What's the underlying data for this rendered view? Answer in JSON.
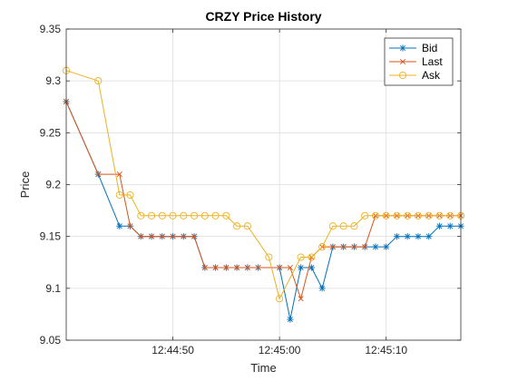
{
  "chart_data": {
    "type": "line",
    "title": "CRZY Price History",
    "xlabel": "Time",
    "ylabel": "Price",
    "x_axis_type": "time",
    "xlim": [
      "12:44:40",
      "12:45:17"
    ],
    "ylim": [
      9.05,
      9.35
    ],
    "xticks": [
      "12:44:50",
      "12:45:00",
      "12:45:10"
    ],
    "yticks": [
      "9.05",
      "9.1",
      "9.15",
      "9.2",
      "9.25",
      "9.3",
      "9.35"
    ],
    "grid": true,
    "legend_position": "top-right",
    "series": [
      {
        "name": "Bid",
        "color": "#0072BD",
        "marker": "asterisk",
        "points": [
          [
            "12:44:40",
            9.28
          ],
          [
            "12:44:43",
            9.21
          ],
          [
            "12:44:45",
            9.16
          ],
          [
            "12:44:46",
            9.16
          ],
          [
            "12:44:47",
            9.15
          ],
          [
            "12:44:48",
            9.15
          ],
          [
            "12:44:49",
            9.15
          ],
          [
            "12:44:50",
            9.15
          ],
          [
            "12:44:51",
            9.15
          ],
          [
            "12:44:52",
            9.15
          ],
          [
            "12:44:53",
            9.12
          ],
          [
            "12:44:54",
            9.12
          ],
          [
            "12:44:55",
            9.12
          ],
          [
            "12:44:56",
            9.12
          ],
          [
            "12:44:57",
            9.12
          ],
          [
            "12:44:58",
            9.12
          ],
          [
            "12:45:00",
            9.12
          ],
          [
            "12:45:01",
            9.07
          ],
          [
            "12:45:02",
            9.12
          ],
          [
            "12:45:03",
            9.12
          ],
          [
            "12:45:04",
            9.1
          ],
          [
            "12:45:05",
            9.14
          ],
          [
            "12:45:06",
            9.14
          ],
          [
            "12:45:07",
            9.14
          ],
          [
            "12:45:08",
            9.14
          ],
          [
            "12:45:09",
            9.14
          ],
          [
            "12:45:10",
            9.14
          ],
          [
            "12:45:11",
            9.15
          ],
          [
            "12:45:12",
            9.15
          ],
          [
            "12:45:13",
            9.15
          ],
          [
            "12:45:14",
            9.15
          ],
          [
            "12:45:15",
            9.16
          ],
          [
            "12:45:16",
            9.16
          ],
          [
            "12:45:17",
            9.16
          ]
        ]
      },
      {
        "name": "Last",
        "color": "#D95319",
        "marker": "x",
        "points": [
          [
            "12:44:40",
            9.28
          ],
          [
            "12:44:43",
            9.21
          ],
          [
            "12:44:45",
            9.21
          ],
          [
            "12:44:46",
            9.16
          ],
          [
            "12:44:47",
            9.15
          ],
          [
            "12:44:48",
            9.15
          ],
          [
            "12:44:49",
            9.15
          ],
          [
            "12:44:50",
            9.15
          ],
          [
            "12:44:51",
            9.15
          ],
          [
            "12:44:52",
            9.15
          ],
          [
            "12:44:53",
            9.12
          ],
          [
            "12:44:54",
            9.12
          ],
          [
            "12:44:55",
            9.12
          ],
          [
            "12:44:56",
            9.12
          ],
          [
            "12:44:57",
            9.12
          ],
          [
            "12:44:58",
            9.12
          ],
          [
            "12:45:00",
            9.12
          ],
          [
            "12:45:01",
            9.12
          ],
          [
            "12:45:02",
            9.09
          ],
          [
            "12:45:03",
            9.13
          ],
          [
            "12:45:04",
            9.14
          ],
          [
            "12:45:05",
            9.14
          ],
          [
            "12:45:06",
            9.14
          ],
          [
            "12:45:07",
            9.14
          ],
          [
            "12:45:08",
            9.14
          ],
          [
            "12:45:09",
            9.17
          ],
          [
            "12:45:10",
            9.17
          ],
          [
            "12:45:11",
            9.17
          ],
          [
            "12:45:12",
            9.17
          ],
          [
            "12:45:13",
            9.17
          ],
          [
            "12:45:14",
            9.17
          ],
          [
            "12:45:15",
            9.17
          ],
          [
            "12:45:16",
            9.17
          ],
          [
            "12:45:17",
            9.17
          ]
        ]
      },
      {
        "name": "Ask",
        "color": "#EDB120",
        "marker": "circle",
        "points": [
          [
            "12:44:40",
            9.31
          ],
          [
            "12:44:43",
            9.3
          ],
          [
            "12:44:45",
            9.19
          ],
          [
            "12:44:46",
            9.19
          ],
          [
            "12:44:47",
            9.17
          ],
          [
            "12:44:48",
            9.17
          ],
          [
            "12:44:49",
            9.17
          ],
          [
            "12:44:50",
            9.17
          ],
          [
            "12:44:51",
            9.17
          ],
          [
            "12:44:52",
            9.17
          ],
          [
            "12:44:53",
            9.17
          ],
          [
            "12:44:54",
            9.17
          ],
          [
            "12:44:55",
            9.17
          ],
          [
            "12:44:56",
            9.16
          ],
          [
            "12:44:57",
            9.16
          ],
          [
            "12:44:59",
            9.13
          ],
          [
            "12:45:00",
            9.09
          ],
          [
            "12:45:02",
            9.13
          ],
          [
            "12:45:03",
            9.13
          ],
          [
            "12:45:04",
            9.14
          ],
          [
            "12:45:05",
            9.16
          ],
          [
            "12:45:06",
            9.16
          ],
          [
            "12:45:07",
            9.16
          ],
          [
            "12:45:08",
            9.17
          ],
          [
            "12:45:09",
            9.17
          ],
          [
            "12:45:10",
            9.17
          ],
          [
            "12:45:11",
            9.17
          ],
          [
            "12:45:12",
            9.17
          ],
          [
            "12:45:13",
            9.17
          ],
          [
            "12:45:14",
            9.17
          ],
          [
            "12:45:15",
            9.17
          ],
          [
            "12:45:16",
            9.17
          ],
          [
            "12:45:17",
            9.17
          ]
        ]
      }
    ]
  }
}
